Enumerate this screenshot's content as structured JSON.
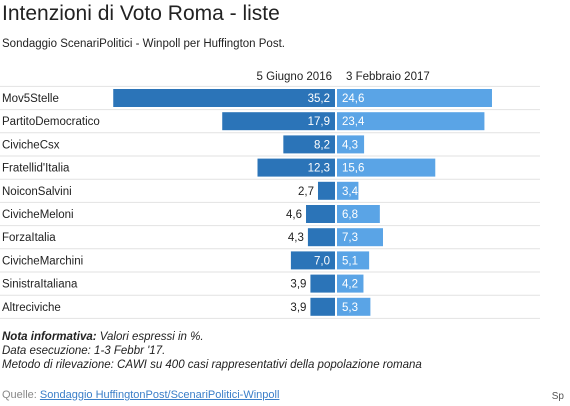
{
  "header": {
    "title": "Intenzioni di Voto Roma - liste",
    "subtitle": "Sondaggio ScenariPolitici - Winpoll per Huffington Post."
  },
  "chart_data": {
    "type": "bar",
    "categories": [
      "Mov5Stelle",
      "PartitoDemocratico",
      "CivicheCsx",
      "Fratellid'Italia",
      "NoiconSalvini",
      "CivicheMeloni",
      "ForzaItalia",
      "CivicheMarchini",
      "SinistraItaliana",
      "Altreciviche"
    ],
    "series": [
      {
        "name": "5 Giugno 2016",
        "values": [
          35.2,
          17.9,
          8.2,
          12.3,
          2.7,
          4.6,
          4.3,
          7.0,
          3.9,
          3.9
        ],
        "labels": [
          "35,2",
          "17,9",
          "8,2",
          "12,3",
          "2,7",
          "4,6",
          "4,3",
          "7,0",
          "3,9",
          "3,9"
        ],
        "color": "#2b74b8"
      },
      {
        "name": "3 Febbraio 2017",
        "values": [
          24.6,
          23.4,
          4.3,
          15.6,
          3.4,
          6.8,
          7.3,
          5.1,
          4.2,
          5.3
        ],
        "labels": [
          "24,6",
          "23,4",
          "4,3",
          "15,6",
          "3,4",
          "6,8",
          "7,3",
          "5,1",
          "4,2",
          "5,3"
        ],
        "color": "#5aa4e6"
      }
    ],
    "orientation": "horizontal-mirrored",
    "grid": true
  },
  "notes": {
    "line1_bold": "Nota informativa:",
    "line1_rest": " Valori espressi in %.",
    "line2": "Data esecuzione: 1-3 Febbr '17.",
    "line3": "Metodo di rilevazione: CAWI su 400 casi rappresentativi della popolazione romana"
  },
  "source": {
    "label": "Quelle: ",
    "link": "Sondaggio HuffingtonPost/ScenariPolitici-Winpoll"
  },
  "corner_text": "Sp"
}
